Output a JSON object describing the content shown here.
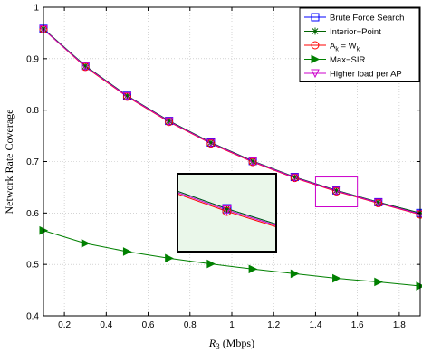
{
  "chart_data": {
    "type": "line",
    "xlabel": "R",
    "xlabel_sub": "3",
    "xlabel_unit": " (Mbps)",
    "ylabel": "Network Rate Coverage",
    "xlim": [
      0.1,
      1.9
    ],
    "ylim": [
      0.4,
      1.0
    ],
    "xticks": [
      0.2,
      0.4,
      0.6,
      0.8,
      1.0,
      1.2,
      1.4,
      1.6,
      1.8
    ],
    "xtick_labels": [
      "0.2",
      "0.4",
      "0.6",
      "0.8",
      "1",
      "1.2",
      "1.4",
      "1.6",
      "1.8"
    ],
    "yticks": [
      0.4,
      0.5,
      0.6,
      0.7,
      0.8,
      0.9,
      1.0
    ],
    "ytick_labels": [
      "0.4",
      "0.5",
      "0.6",
      "0.7",
      "0.8",
      "0.9",
      "1"
    ],
    "legend_position": "top-right",
    "x": [
      0.1,
      0.3,
      0.5,
      0.7,
      0.9,
      1.1,
      1.3,
      1.5,
      1.7,
      1.9
    ],
    "series": [
      {
        "name": "Brute Force Search",
        "color": "#0000ff",
        "marker": "square",
        "values": [
          0.958,
          0.886,
          0.828,
          0.779,
          0.737,
          0.701,
          0.67,
          0.644,
          0.621,
          0.6
        ]
      },
      {
        "name": "Interior−Point",
        "color": "#006400",
        "marker": "star",
        "values": [
          0.958,
          0.886,
          0.828,
          0.779,
          0.737,
          0.701,
          0.67,
          0.644,
          0.621,
          0.6
        ]
      },
      {
        "name": "A",
        "name_sub": "k",
        "name_mid": " = W",
        "name_sub2": "k",
        "color": "#ff0000",
        "marker": "circle",
        "values": [
          0.957,
          0.884,
          0.826,
          0.777,
          0.735,
          0.699,
          0.668,
          0.642,
          0.619,
          0.597
        ]
      },
      {
        "name": "Max−SIR",
        "color": "#008000",
        "marker": "triangle-right",
        "values": [
          0.566,
          0.541,
          0.525,
          0.512,
          0.501,
          0.491,
          0.482,
          0.473,
          0.466,
          0.458
        ]
      },
      {
        "name": "Higher load per AP",
        "color": "#cc00cc",
        "marker": "triangle-down",
        "values": [
          0.957,
          0.885,
          0.827,
          0.778,
          0.736,
          0.7,
          0.669,
          0.643,
          0.62,
          0.598
        ]
      }
    ],
    "zoom_inset": {
      "x_range": [
        1.4,
        1.6
      ],
      "y_range": [
        0.612,
        0.67
      ],
      "background": "#eaf7ea",
      "rect_color": "#cc00cc"
    }
  }
}
